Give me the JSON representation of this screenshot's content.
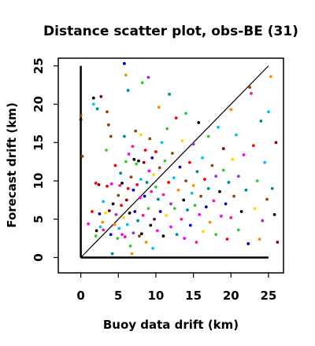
{
  "chart_data": {
    "type": "scatter",
    "title": "Distance scatter plot, obs-BE (31)",
    "xlabel": "Buoy data drift (km)",
    "ylabel": "Forecast drift (km)",
    "xlim": [
      -3,
      27
    ],
    "ylim": [
      -2,
      26
    ],
    "xticks": [
      0,
      5,
      10,
      15,
      20,
      25
    ],
    "yticks": [
      0,
      5,
      10,
      15,
      20,
      25
    ],
    "grid": false,
    "legend": "none",
    "reference_lines": [
      {
        "name": "identity",
        "from": [
          0,
          0
        ],
        "to": [
          25,
          25
        ],
        "color": "#000000"
      },
      {
        "name": "x-zero",
        "from": [
          0,
          0
        ],
        "to": [
          0,
          25
        ],
        "color": "#000000"
      },
      {
        "name": "y-zero",
        "from": [
          0,
          0
        ],
        "to": [
          25,
          0
        ],
        "color": "#000000"
      }
    ],
    "points": [
      {
        "x": 0.0,
        "y": 18.5,
        "color": "#8b4513"
      },
      {
        "x": 0.0,
        "y": 18.0,
        "color": "#000000"
      },
      {
        "x": 0.2,
        "y": 13.2,
        "color": "#8b4513"
      },
      {
        "x": 1.0,
        "y": 4.4,
        "color": "#ff00ff"
      },
      {
        "x": 1.5,
        "y": 6.0,
        "color": "#ff0000"
      },
      {
        "x": 1.7,
        "y": 20.8,
        "color": "#000000"
      },
      {
        "x": 1.7,
        "y": 20.0,
        "color": "#00bfff"
      },
      {
        "x": 2.0,
        "y": 2.8,
        "color": "#32cd32"
      },
      {
        "x": 2.0,
        "y": 9.7,
        "color": "#ff0000"
      },
      {
        "x": 2.1,
        "y": 3.5,
        "color": "#000000"
      },
      {
        "x": 2.2,
        "y": 19.4,
        "color": "#008b8b"
      },
      {
        "x": 2.4,
        "y": 9.5,
        "color": "#8b0000"
      },
      {
        "x": 2.5,
        "y": 5.7,
        "color": "#0000cd"
      },
      {
        "x": 2.6,
        "y": 4.0,
        "color": "#00bfff"
      },
      {
        "x": 2.7,
        "y": 21.0,
        "color": "#8b0000"
      },
      {
        "x": 2.9,
        "y": 4.6,
        "color": "#ff8c00"
      },
      {
        "x": 3.0,
        "y": 3.6,
        "color": "#ff1493"
      },
      {
        "x": 3.0,
        "y": 7.3,
        "color": "#00bfff"
      },
      {
        "x": 3.3,
        "y": 5.8,
        "color": "#ffd700"
      },
      {
        "x": 3.4,
        "y": 14.0,
        "color": "#32cd32"
      },
      {
        "x": 3.5,
        "y": 19.0,
        "color": "#8b4513"
      },
      {
        "x": 3.5,
        "y": 9.3,
        "color": "#ff0000"
      },
      {
        "x": 3.7,
        "y": 17.3,
        "color": "#8b4513"
      },
      {
        "x": 3.8,
        "y": 6.1,
        "color": "#8b0000"
      },
      {
        "x": 4.0,
        "y": 3.0,
        "color": "#0000cd"
      },
      {
        "x": 4.0,
        "y": 15.8,
        "color": "#8b4513"
      },
      {
        "x": 4.1,
        "y": 9.6,
        "color": "#ff00ff"
      },
      {
        "x": 4.2,
        "y": 0.5,
        "color": "#008b8b"
      },
      {
        "x": 4.3,
        "y": 7.0,
        "color": "#000000"
      },
      {
        "x": 4.5,
        "y": 4.3,
        "color": "#ff8c00"
      },
      {
        "x": 4.6,
        "y": 12.0,
        "color": "#ff0000"
      },
      {
        "x": 4.7,
        "y": 5.6,
        "color": "#9932cc"
      },
      {
        "x": 4.9,
        "y": 2.5,
        "color": "#32cd32"
      },
      {
        "x": 5.0,
        "y": 8.1,
        "color": "#8b4513"
      },
      {
        "x": 5.1,
        "y": 3.8,
        "color": "#00bfff"
      },
      {
        "x": 5.2,
        "y": 9.4,
        "color": "#ff1493"
      },
      {
        "x": 5.3,
        "y": 11.0,
        "color": "#008b8b"
      },
      {
        "x": 5.4,
        "y": 6.8,
        "color": "#ff0000"
      },
      {
        "x": 5.5,
        "y": 3.0,
        "color": "#ff00ff"
      },
      {
        "x": 5.5,
        "y": 9.7,
        "color": "#000000"
      },
      {
        "x": 5.7,
        "y": 5.2,
        "color": "#ffd700"
      },
      {
        "x": 5.8,
        "y": 25.3,
        "color": "#0000cd"
      },
      {
        "x": 5.8,
        "y": 15.8,
        "color": "#008b8b"
      },
      {
        "x": 5.9,
        "y": 2.7,
        "color": "#ff1493"
      },
      {
        "x": 6.0,
        "y": 23.8,
        "color": "#ff8c00"
      },
      {
        "x": 6.0,
        "y": 12.5,
        "color": "#32cd32"
      },
      {
        "x": 6.1,
        "y": 7.5,
        "color": "#8b0000"
      },
      {
        "x": 6.2,
        "y": 4.3,
        "color": "#00bfff"
      },
      {
        "x": 6.3,
        "y": 21.8,
        "color": "#008b8b"
      },
      {
        "x": 6.3,
        "y": 9.0,
        "color": "#ff0000"
      },
      {
        "x": 6.4,
        "y": 13.5,
        "color": "#ff00ff"
      },
      {
        "x": 6.5,
        "y": 5.8,
        "color": "#000000"
      },
      {
        "x": 6.6,
        "y": 1.5,
        "color": "#32cd32"
      },
      {
        "x": 6.7,
        "y": 10.5,
        "color": "#8b4513"
      },
      {
        "x": 6.8,
        "y": 0.5,
        "color": "#ff8c00"
      },
      {
        "x": 6.9,
        "y": 14.5,
        "color": "#ff1493"
      },
      {
        "x": 7.0,
        "y": 8.8,
        "color": "#0000cd"
      },
      {
        "x": 7.0,
        "y": 3.2,
        "color": "#9932cc"
      },
      {
        "x": 7.1,
        "y": 12.8,
        "color": "#000000"
      },
      {
        "x": 7.2,
        "y": 6.0,
        "color": "#0000cd"
      },
      {
        "x": 7.3,
        "y": 16.5,
        "color": "#8b4513"
      },
      {
        "x": 7.4,
        "y": 12.2,
        "color": "#32cd32"
      },
      {
        "x": 7.5,
        "y": 9.5,
        "color": "#ff0000"
      },
      {
        "x": 7.6,
        "y": 4.8,
        "color": "#008b8b"
      },
      {
        "x": 7.7,
        "y": 12.6,
        "color": "#000000"
      },
      {
        "x": 7.8,
        "y": 2.8,
        "color": "#8b4513"
      },
      {
        "x": 7.9,
        "y": 7.8,
        "color": "#ff00ff"
      },
      {
        "x": 8.0,
        "y": 16.0,
        "color": "#ffd700"
      },
      {
        "x": 8.0,
        "y": 10.2,
        "color": "#00bfff"
      },
      {
        "x": 8.1,
        "y": 3.1,
        "color": "#000000"
      },
      {
        "x": 8.2,
        "y": 22.8,
        "color": "#32cd32"
      },
      {
        "x": 8.3,
        "y": 5.5,
        "color": "#ff1493"
      },
      {
        "x": 8.4,
        "y": 12.4,
        "color": "#8b0000"
      },
      {
        "x": 8.5,
        "y": 8.0,
        "color": "#0000cd"
      },
      {
        "x": 8.6,
        "y": 14.0,
        "color": "#ff0000"
      },
      {
        "x": 8.7,
        "y": 2.0,
        "color": "#ff8c00"
      },
      {
        "x": 8.8,
        "y": 9.8,
        "color": "#008b8b"
      },
      {
        "x": 9.0,
        "y": 23.5,
        "color": "#9932cc"
      },
      {
        "x": 9.0,
        "y": 6.4,
        "color": "#32cd32"
      },
      {
        "x": 9.1,
        "y": 11.3,
        "color": "#ff00ff"
      },
      {
        "x": 9.2,
        "y": 15.5,
        "color": "#8b4513"
      },
      {
        "x": 9.3,
        "y": 4.2,
        "color": "#000000"
      },
      {
        "x": 9.4,
        "y": 8.6,
        "color": "#ff1493"
      },
      {
        "x": 9.5,
        "y": 13.0,
        "color": "#0000cd"
      },
      {
        "x": 9.6,
        "y": 1.2,
        "color": "#00bfff"
      },
      {
        "x": 9.7,
        "y": 10.8,
        "color": "#ffd700"
      },
      {
        "x": 9.8,
        "y": 5.0,
        "color": "#8b0000"
      },
      {
        "x": 10.0,
        "y": 9.2,
        "color": "#32cd32"
      },
      {
        "x": 10.0,
        "y": 13.8,
        "color": "#ff0000"
      },
      {
        "x": 10.2,
        "y": 3.5,
        "color": "#ff00ff"
      },
      {
        "x": 10.3,
        "y": 7.6,
        "color": "#008b8b"
      },
      {
        "x": 10.4,
        "y": 19.6,
        "color": "#ff8c00"
      },
      {
        "x": 10.5,
        "y": 11.7,
        "color": "#8b4513"
      },
      {
        "x": 10.6,
        "y": 6.0,
        "color": "#0000cd"
      },
      {
        "x": 10.8,
        "y": 15.0,
        "color": "#00bfff"
      },
      {
        "x": 11.0,
        "y": 8.2,
        "color": "#ff1493"
      },
      {
        "x": 11.0,
        "y": 2.8,
        "color": "#000000"
      },
      {
        "x": 11.2,
        "y": 12.6,
        "color": "#32cd32"
      },
      {
        "x": 11.4,
        "y": 5.5,
        "color": "#ffd700"
      },
      {
        "x": 11.5,
        "y": 16.8,
        "color": "#32cd32"
      },
      {
        "x": 11.7,
        "y": 9.8,
        "color": "#ff0000"
      },
      {
        "x": 11.8,
        "y": 21.3,
        "color": "#008b8b"
      },
      {
        "x": 12.0,
        "y": 7.0,
        "color": "#9932cc"
      },
      {
        "x": 12.0,
        "y": 4.0,
        "color": "#ff00ff"
      },
      {
        "x": 12.2,
        "y": 13.6,
        "color": "#8b4513"
      },
      {
        "x": 12.4,
        "y": 10.4,
        "color": "#00bfff"
      },
      {
        "x": 12.5,
        "y": 6.4,
        "color": "#32cd32"
      },
      {
        "x": 12.7,
        "y": 18.2,
        "color": "#ff0000"
      },
      {
        "x": 12.8,
        "y": 3.0,
        "color": "#008b8b"
      },
      {
        "x": 13.0,
        "y": 8.8,
        "color": "#ff8c00"
      },
      {
        "x": 13.2,
        "y": 11.8,
        "color": "#0000cd"
      },
      {
        "x": 13.4,
        "y": 5.0,
        "color": "#ff1493"
      },
      {
        "x": 13.5,
        "y": 15.2,
        "color": "#ffd700"
      },
      {
        "x": 13.7,
        "y": 7.5,
        "color": "#000000"
      },
      {
        "x": 13.8,
        "y": 2.5,
        "color": "#ff00ff"
      },
      {
        "x": 14.0,
        "y": 10.0,
        "color": "#8b4513"
      },
      {
        "x": 14.0,
        "y": 18.8,
        "color": "#32cd32"
      },
      {
        "x": 14.2,
        "y": 6.2,
        "color": "#008b8b"
      },
      {
        "x": 14.5,
        "y": 12.4,
        "color": "#ff0000"
      },
      {
        "x": 14.6,
        "y": 4.2,
        "color": "#0000cd"
      },
      {
        "x": 14.8,
        "y": 8.4,
        "color": "#00bfff"
      },
      {
        "x": 15.0,
        "y": 14.8,
        "color": "#9932cc"
      },
      {
        "x": 15.0,
        "y": 9.4,
        "color": "#ff8c00"
      },
      {
        "x": 15.2,
        "y": 6.8,
        "color": "#32cd32"
      },
      {
        "x": 15.4,
        "y": 2.0,
        "color": "#ff1493"
      },
      {
        "x": 15.5,
        "y": 11.2,
        "color": "#008b8b"
      },
      {
        "x": 15.7,
        "y": 17.6,
        "color": "#000000"
      },
      {
        "x": 15.8,
        "y": 5.6,
        "color": "#ff00ff"
      },
      {
        "x": 16.0,
        "y": 8.0,
        "color": "#8b4513"
      },
      {
        "x": 16.2,
        "y": 13.0,
        "color": "#00bfff"
      },
      {
        "x": 16.3,
        "y": 3.4,
        "color": "#ffd700"
      },
      {
        "x": 16.5,
        "y": 10.2,
        "color": "#ff0000"
      },
      {
        "x": 16.7,
        "y": 6.6,
        "color": "#0000cd"
      },
      {
        "x": 17.0,
        "y": 15.8,
        "color": "#32cd32"
      },
      {
        "x": 17.0,
        "y": 9.0,
        "color": "#008b8b"
      },
      {
        "x": 17.2,
        "y": 4.6,
        "color": "#ff8c00"
      },
      {
        "x": 17.5,
        "y": 12.0,
        "color": "#8b4513"
      },
      {
        "x": 17.7,
        "y": 7.4,
        "color": "#ff1493"
      },
      {
        "x": 18.0,
        "y": 10.6,
        "color": "#9932cc"
      },
      {
        "x": 18.0,
        "y": 3.0,
        "color": "#32cd32"
      },
      {
        "x": 18.3,
        "y": 17.0,
        "color": "#00bfff"
      },
      {
        "x": 18.5,
        "y": 8.6,
        "color": "#000000"
      },
      {
        "x": 18.7,
        "y": 5.4,
        "color": "#ff00ff"
      },
      {
        "x": 19.0,
        "y": 14.2,
        "color": "#8b0000"
      },
      {
        "x": 19.0,
        "y": 11.4,
        "color": "#32cd32"
      },
      {
        "x": 19.3,
        "y": 7.0,
        "color": "#0000cd"
      },
      {
        "x": 19.5,
        "y": 2.4,
        "color": "#ff0000"
      },
      {
        "x": 19.7,
        "y": 9.8,
        "color": "#008b8b"
      },
      {
        "x": 20.0,
        "y": 19.3,
        "color": "#ff8c00"
      },
      {
        "x": 20.0,
        "y": 5.2,
        "color": "#ff1493"
      },
      {
        "x": 20.2,
        "y": 12.8,
        "color": "#ffd700"
      },
      {
        "x": 20.4,
        "y": 8.0,
        "color": "#8b4513"
      },
      {
        "x": 20.7,
        "y": 16.0,
        "color": "#00bfff"
      },
      {
        "x": 21.0,
        "y": 3.6,
        "color": "#32cd32"
      },
      {
        "x": 21.0,
        "y": 10.6,
        "color": "#9932cc"
      },
      {
        "x": 21.4,
        "y": 6.0,
        "color": "#000000"
      },
      {
        "x": 21.7,
        "y": 13.4,
        "color": "#ff00ff"
      },
      {
        "x": 22.0,
        "y": 8.8,
        "color": "#008b8b"
      },
      {
        "x": 22.3,
        "y": 1.8,
        "color": "#0000cd"
      },
      {
        "x": 22.5,
        "y": 22.2,
        "color": "#8b4513"
      },
      {
        "x": 22.7,
        "y": 21.4,
        "color": "#ff1493"
      },
      {
        "x": 23.0,
        "y": 14.6,
        "color": "#ff0000"
      },
      {
        "x": 23.2,
        "y": 6.4,
        "color": "#ffd700"
      },
      {
        "x": 23.5,
        "y": 10.0,
        "color": "#32cd32"
      },
      {
        "x": 23.8,
        "y": 2.4,
        "color": "#ff8c00"
      },
      {
        "x": 24.0,
        "y": 17.8,
        "color": "#008b8b"
      },
      {
        "x": 24.2,
        "y": 4.8,
        "color": "#9932cc"
      },
      {
        "x": 24.5,
        "y": 12.4,
        "color": "#00bfff"
      },
      {
        "x": 24.8,
        "y": 7.6,
        "color": "#8b4513"
      },
      {
        "x": 25.0,
        "y": 19.0,
        "color": "#00bfff"
      },
      {
        "x": 25.3,
        "y": 23.6,
        "color": "#ff8c00"
      },
      {
        "x": 25.5,
        "y": 9.0,
        "color": "#008b8b"
      },
      {
        "x": 25.8,
        "y": 5.6,
        "color": "#000000"
      },
      {
        "x": 26.0,
        "y": 15.0,
        "color": "#8b0000"
      },
      {
        "x": 26.2,
        "y": 2.0,
        "color": "#8b0000"
      }
    ]
  }
}
